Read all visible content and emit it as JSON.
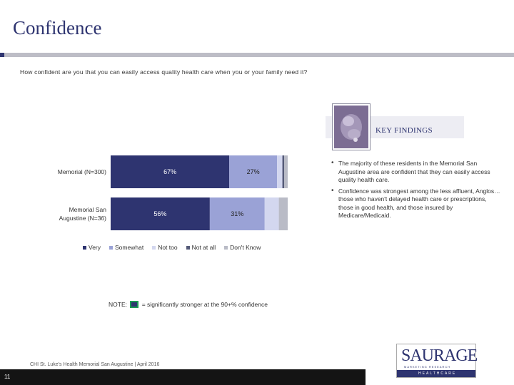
{
  "page": {
    "title": "Confidence",
    "question": "How confident are you that you can easily access quality health care when you or your family need it?",
    "footer": "CHI St. Luke's Health Memorial San Augustine | April 2016",
    "page_number": "11"
  },
  "key_findings": {
    "label": "KEY FINDINGS",
    "bullets": [
      "The majority of these residents in the Memorial San Augustine area are confident that they can easily access quality health care.",
      "Confidence was strongest among the less affluent, Anglos…those who haven't delayed health care or prescriptions, those in good health, and those insured by Medicare/Medicaid."
    ]
  },
  "note": {
    "prefix": "NOTE:",
    "text": "= significantly stronger at the 90+% confidence"
  },
  "logo": {
    "name": "SAURAGE",
    "sub": "MARKETING RESEARCH",
    "band": "HEALTHCARE"
  },
  "chart_data": {
    "type": "bar",
    "orientation": "horizontal",
    "stacked": true,
    "categories": [
      "Memorial (N=300)",
      "Memorial San Augustine (N=36)"
    ],
    "series": [
      {
        "name": "Very",
        "values": [
          67,
          56
        ],
        "labels": [
          "67%",
          "56%"
        ],
        "color": "#2e3470"
      },
      {
        "name": "Somewhat",
        "values": [
          27,
          31
        ],
        "labels": [
          "27%",
          "31%"
        ],
        "color": "#9aa2d6"
      },
      {
        "name": "Not too",
        "values": [
          3,
          8
        ],
        "labels": [
          "",
          ""
        ],
        "color": "#d3d7ef"
      },
      {
        "name": "Not at all",
        "values": [
          1,
          0
        ],
        "labels": [
          "",
          ""
        ],
        "color": "#555a78"
      },
      {
        "name": "Don't Know",
        "values": [
          2,
          5
        ],
        "labels": [
          "",
          ""
        ],
        "color": "#b9bbc6"
      }
    ],
    "xlim": [
      0,
      100
    ],
    "legend_position": "bottom",
    "grid": false
  }
}
